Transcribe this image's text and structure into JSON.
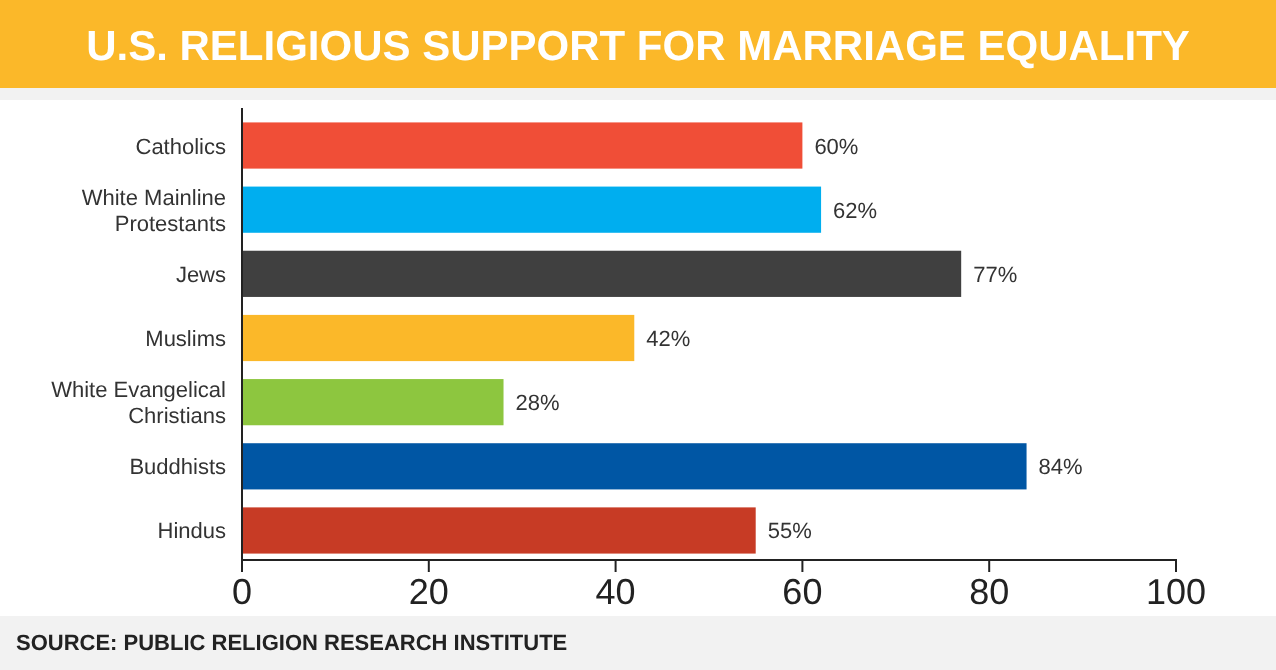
{
  "chart_data": {
    "type": "bar",
    "orientation": "horizontal",
    "title": "U.S. RELIGIOUS SUPPORT FOR MARRIAGE EQUALITY",
    "categories": [
      "Catholics",
      "White Mainline Protestants",
      "Jews",
      "Muslims",
      "White Evangelical Christians",
      "Buddhists",
      "Hindus"
    ],
    "values": [
      60,
      62,
      77,
      42,
      28,
      84,
      55
    ],
    "colors": [
      "#f04e37",
      "#00aeef",
      "#404040",
      "#fbb829",
      "#8dc63f",
      "#0056a4",
      "#c73b25"
    ],
    "value_labels": [
      "60%",
      "62%",
      "77%",
      "42%",
      "28%",
      "84%",
      "55%"
    ],
    "xlim": [
      0,
      100
    ],
    "xticks": [
      0,
      20,
      40,
      60,
      80,
      100
    ],
    "grid": false,
    "annotations": [
      "SOURCE: PUBLIC RELIGION RESEARCH INSTITUTE"
    ]
  }
}
